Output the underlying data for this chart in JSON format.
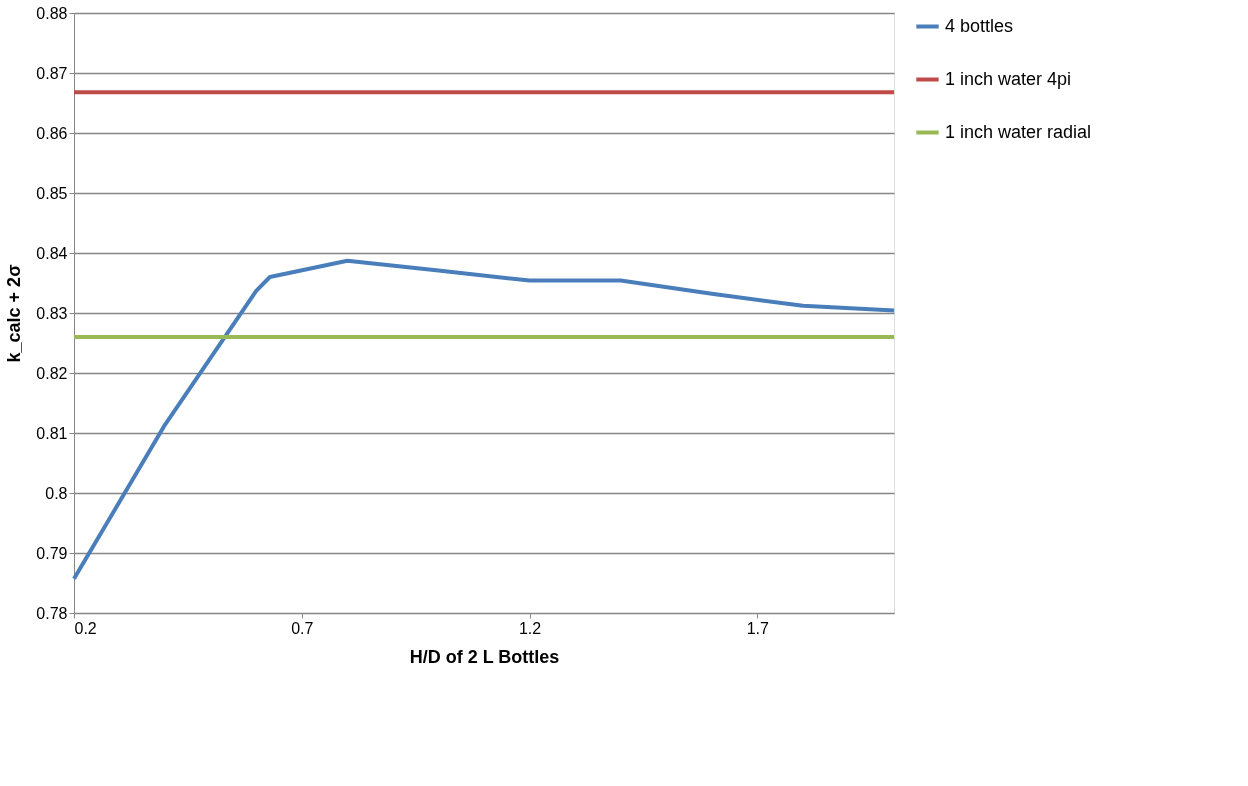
{
  "chart_data": {
    "type": "line",
    "xlabel": "H/D of 2 L Bottles",
    "ylabel": "k_calc + 2σ",
    "xlim": [
      0.2,
      2.0
    ],
    "xticks": [
      0.2,
      0.7,
      1.2,
      1.7
    ],
    "ylim": [
      0.78,
      0.88
    ],
    "yticks": [
      0.78,
      0.79,
      0.8,
      0.81,
      0.82,
      0.83,
      0.84,
      0.85,
      0.86,
      0.87,
      0.88
    ],
    "grid": "y",
    "legend": "right",
    "line_style": "solid",
    "marker": "none",
    "series": [
      {
        "name": "4 bottles",
        "color": "#4a7ebb",
        "x": [
          0.2,
          0.4,
          0.6,
          0.63,
          0.8,
          1.0,
          1.2,
          1.4,
          1.6,
          1.8,
          2.0
        ],
        "values": [
          0.7857,
          0.8114,
          0.8337,
          0.836,
          0.8387,
          0.8371,
          0.8354,
          0.8354,
          0.8332,
          0.8312,
          0.8304
        ]
      },
      {
        "name": "1 inch water 4pi",
        "color": "#be4b48",
        "x": [
          0.2,
          2.0
        ],
        "values": [
          0.8668,
          0.8668
        ]
      },
      {
        "name": "1 inch water radial",
        "color": "#98b954",
        "x": [
          0.2,
          2.0
        ],
        "values": [
          0.826,
          0.826
        ]
      }
    ]
  }
}
